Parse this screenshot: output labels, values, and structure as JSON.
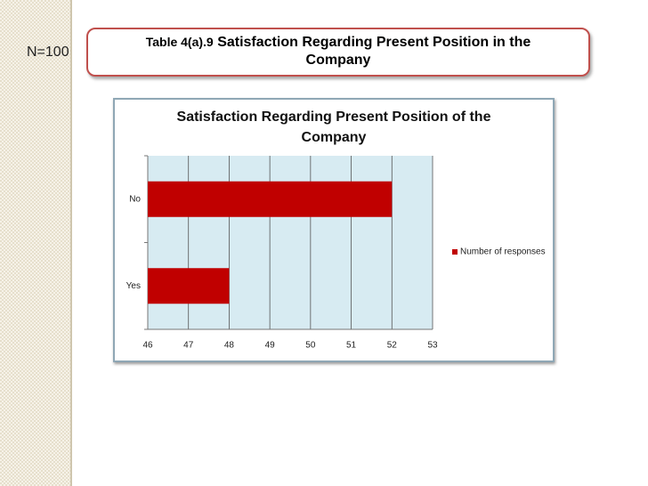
{
  "slide": {
    "sample_size": "N=100",
    "table_label": "Table 4(a).9",
    "heading": "Satisfaction Regarding Present Position in the Company"
  },
  "chart_data": {
    "type": "bar",
    "orientation": "horizontal",
    "title": "Satisfaction Regarding Present Position of the Company",
    "categories": [
      "No",
      "Yes"
    ],
    "series": [
      {
        "name": "Number of responses",
        "color": "#c00000",
        "values": [
          52,
          48
        ]
      }
    ],
    "xlim": [
      46,
      53
    ],
    "xticks": [
      46,
      47,
      48,
      49,
      50,
      51,
      52,
      53
    ],
    "grid": true,
    "legend": "right"
  }
}
